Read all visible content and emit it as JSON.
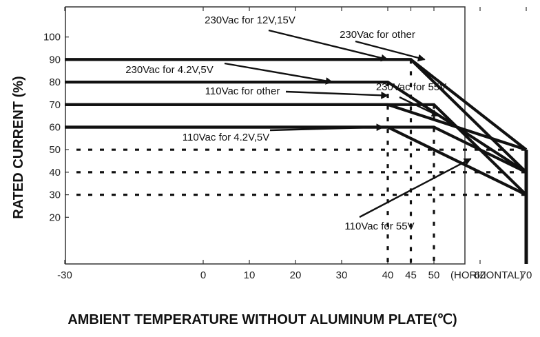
{
  "chart_data": {
    "type": "line",
    "xlabel": "AMBIENT TEMPERATURE WITHOUT ALUMINUM PLATE(℃)",
    "ylabel": "RATED CURRENT (%)",
    "x_unit": "(HORIZONTAL)",
    "xlim": [
      -30,
      78
    ],
    "ylim": [
      0,
      110
    ],
    "x_ticks": [
      -30,
      0,
      10,
      20,
      30,
      40,
      45,
      50,
      60,
      70
    ],
    "y_ticks": [
      20,
      30,
      40,
      50,
      60,
      70,
      80,
      90,
      100
    ],
    "series": [
      {
        "name": "230Vac for 12V,15V",
        "x": [
          -30,
          45,
          70
        ],
        "y": [
          90,
          90,
          50
        ]
      },
      {
        "name": "230Vac for other",
        "x": [
          -30,
          45,
          70
        ],
        "y": [
          90,
          90,
          40
        ]
      },
      {
        "name": "230Vac for 4.2V,5V",
        "x": [
          -30,
          40,
          70
        ],
        "y": [
          80,
          80,
          40
        ]
      },
      {
        "name": "230Vac for 55V",
        "x": [
          -30,
          50,
          70
        ],
        "y": [
          70,
          70,
          30
        ]
      },
      {
        "name": "110Vac for other",
        "x": [
          -30,
          40,
          70
        ],
        "y": [
          70,
          70,
          50
        ]
      },
      {
        "name": "110Vac for 4.2V,5V",
        "x": [
          -30,
          50,
          70
        ],
        "y": [
          60,
          60,
          40
        ]
      },
      {
        "name": "110Vac for 55V",
        "x": [
          -30,
          40,
          70
        ],
        "y": [
          60,
          60,
          30
        ]
      }
    ],
    "reference_lines": {
      "horizontal_y": [
        50,
        40,
        30
      ],
      "vertical_x": [
        40,
        45,
        50
      ],
      "style": "dashed"
    },
    "end_marker_x": 70,
    "annotations": [
      {
        "text": "230Vac for 12V,15V",
        "target": [
          40,
          90
        ]
      },
      {
        "text": "230Vac for other",
        "target": [
          48,
          90
        ]
      },
      {
        "text": "230Vac for 4.2V,5V",
        "target": [
          28,
          80
        ]
      },
      {
        "text": "110Vac for other",
        "target": [
          40,
          74
        ]
      },
      {
        "text": "230Vac for 55V",
        "target": [
          51,
          65
        ]
      },
      {
        "text": "110Vac for 4.2V,5V",
        "target": [
          39,
          60
        ]
      },
      {
        "text": "110Vac for 55V",
        "target": [
          58,
          46
        ]
      }
    ]
  }
}
